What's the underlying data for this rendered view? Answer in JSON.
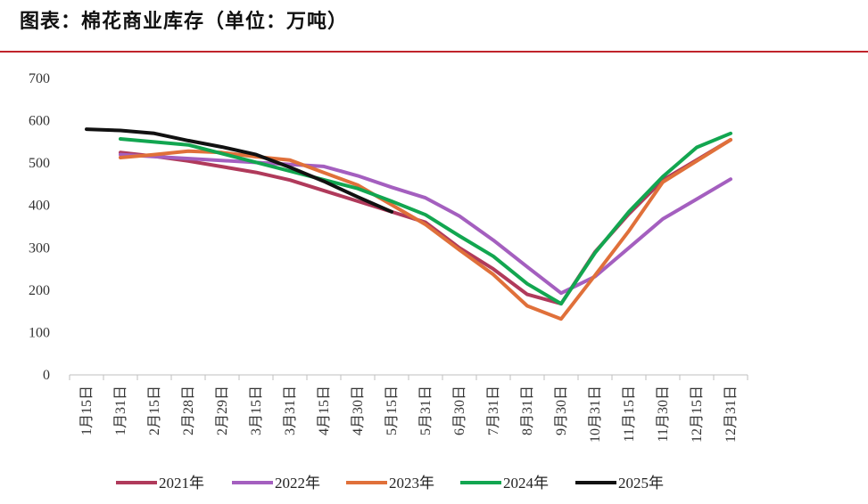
{
  "title": "图表：棉花商业库存（单位：万吨）",
  "colors": {
    "title_rule": "#c0242b",
    "axis": "#bfbfbf"
  },
  "chart_data": {
    "type": "line",
    "title": "图表：棉花商业库存（单位：万吨）",
    "xlabel": "",
    "ylabel": "",
    "ylim": [
      0,
      700
    ],
    "yticks": [
      0,
      100,
      200,
      300,
      400,
      500,
      600,
      700
    ],
    "grid": false,
    "legend_position": "bottom",
    "categories": [
      "1月15日",
      "1月31日",
      "2月15日",
      "2月28日",
      "2月29日",
      "3月15日",
      "3月31日",
      "4月15日",
      "4月30日",
      "5月15日",
      "5月31日",
      "6月30日",
      "7月31日",
      "8月31日",
      "9月30日",
      "10月31日",
      "11月15日",
      "11月30日",
      "12月15日",
      "12月31日"
    ],
    "series": [
      {
        "name": "2021年",
        "color": "#b03a5b",
        "values": [
          null,
          525,
          516,
          505,
          null,
          478,
          460,
          null,
          null,
          null,
          360,
          300,
          250,
          190,
          168,
          290,
          380,
          460,
          null,
          555
        ]
      },
      {
        "name": "2022年",
        "color": "#a45fbf",
        "values": [
          null,
          520,
          null,
          null,
          null,
          null,
          null,
          492,
          470,
          443,
          418,
          375,
          318,
          255,
          193,
          232,
          300,
          368,
          415,
          462
        ]
      },
      {
        "name": "2023年",
        "color": "#e0703a",
        "values": [
          null,
          513,
          520,
          528,
          525,
          515,
          507,
          null,
          448,
          null,
          355,
          295,
          237,
          163,
          132,
          235,
          340,
          455,
          505,
          555
        ]
      },
      {
        "name": "2024年",
        "color": "#12a650",
        "values": [
          null,
          557,
          550,
          543,
          null,
          null,
          null,
          null,
          440,
          410,
          378,
          328,
          280,
          215,
          168,
          288,
          385,
          468,
          537,
          570
        ]
      },
      {
        "name": "2025年",
        "color": "#111111",
        "values": [
          580,
          577,
          570,
          553,
          538,
          520,
          490,
          457,
          420,
          385,
          null,
          null,
          null,
          null,
          null,
          null,
          null,
          null,
          null,
          null
        ]
      }
    ]
  }
}
